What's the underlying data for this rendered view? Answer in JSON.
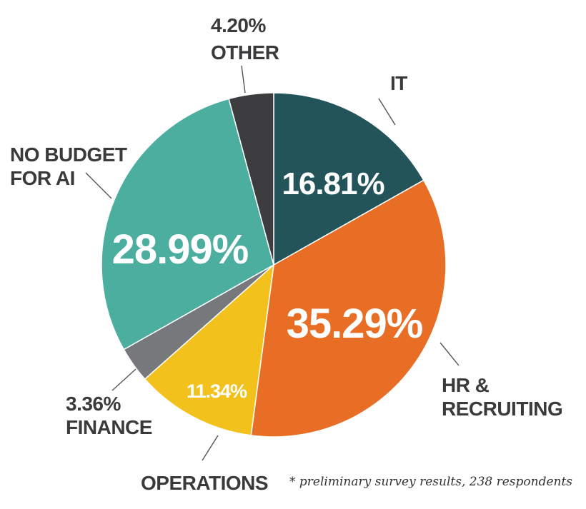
{
  "chart_data": {
    "type": "pie",
    "slices": [
      {
        "key": "it",
        "label_lines": [
          "IT"
        ],
        "value": 16.81,
        "value_text": "16.81%",
        "color": "#22545a"
      },
      {
        "key": "hr",
        "label_lines": [
          "HR &",
          "RECRUITING"
        ],
        "value": 35.29,
        "value_text": "35.29%",
        "color": "#e86e25"
      },
      {
        "key": "operations",
        "label_lines": [
          "OPERATIONS"
        ],
        "value": 11.34,
        "value_text": "11.34%",
        "color": "#f3c11b"
      },
      {
        "key": "finance",
        "label_lines": [
          "FINANCE"
        ],
        "value": 3.36,
        "value_text": "3.36%",
        "color": "#77787b"
      },
      {
        "key": "no_budget",
        "label_lines": [
          "NO BUDGET",
          "FOR AI"
        ],
        "value": 28.99,
        "value_text": "28.99%",
        "color": "#4bae9f"
      },
      {
        "key": "other",
        "label_lines": [
          "OTHER"
        ],
        "value": 4.2,
        "value_text": "4.20%",
        "color": "#3d3d3f"
      }
    ],
    "start_angle": "12 o'clock",
    "direction": "clockwise",
    "legend": "none"
  },
  "footnote": "* preliminary survey results, 238 respondents"
}
